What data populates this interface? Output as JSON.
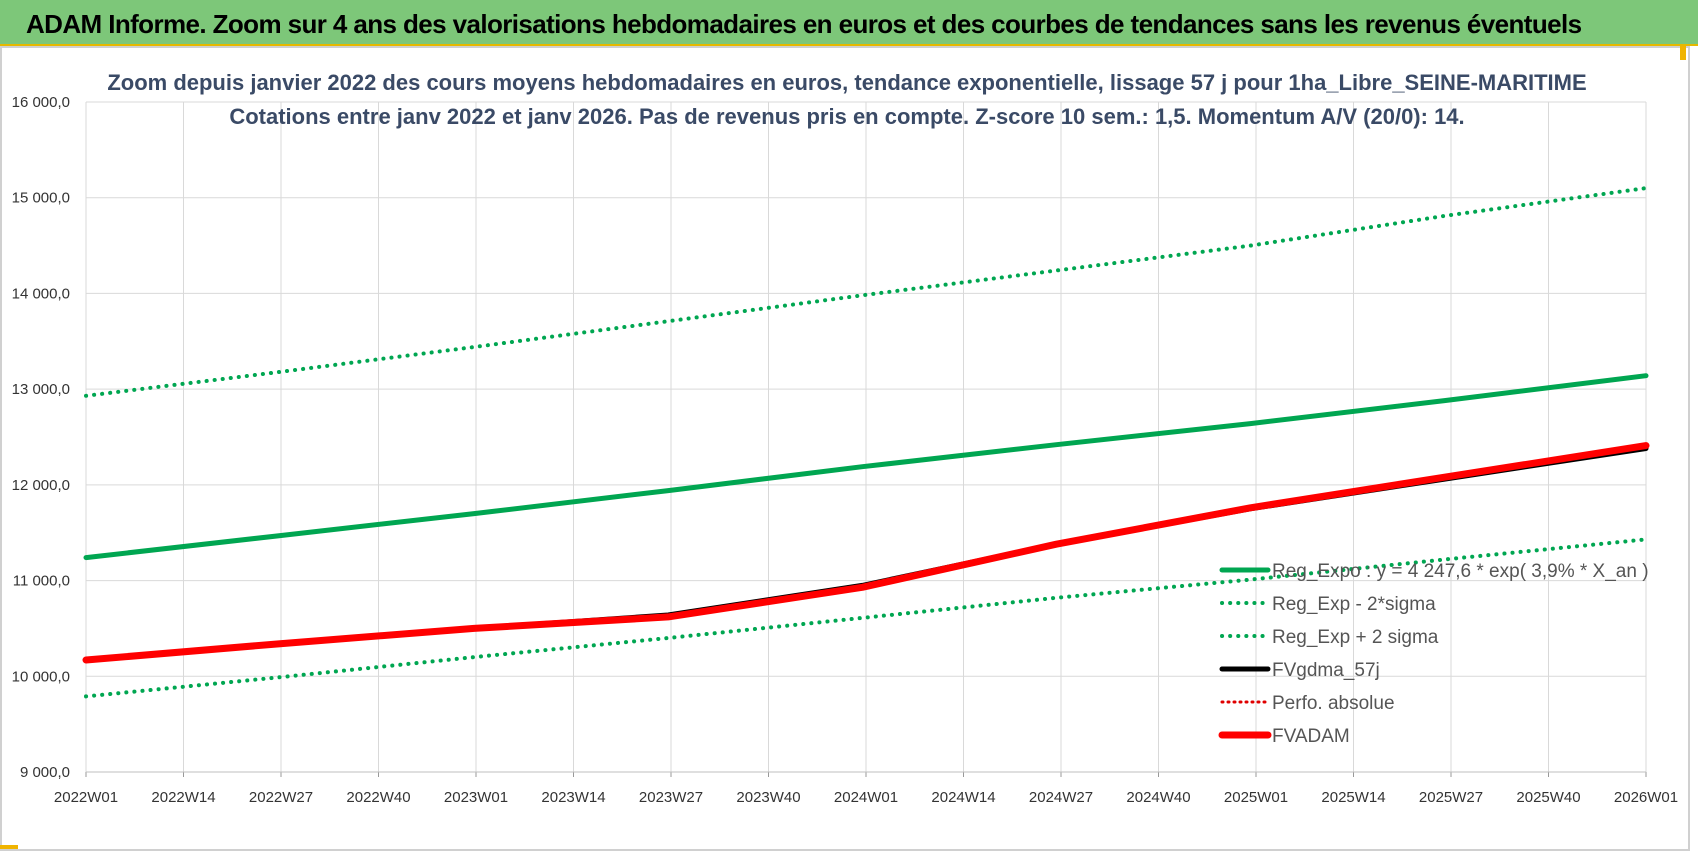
{
  "header": {
    "title": "ADAM Informe. Zoom sur 4 ans des valorisations hebdomadaires en euros et des courbes de tendances sans les revenus éventuels"
  },
  "chart_data": {
    "type": "line",
    "title": "Zoom depuis janvier 2022 des cours moyens hebdomadaires en euros, tendance exponentielle, lissage 57 j pour 1ha_Libre_SEINE-MARITIME",
    "subtitle": "Cotations entre janv 2022 et janv 2026. Pas de revenus pris en compte. Z-score 10 sem.: 1,5. Momentum A/V (20/0): 14.",
    "xlabel": "",
    "ylabel": "",
    "ylim": [
      9000,
      16000
    ],
    "y_ticks": [
      "9 000,0",
      "10 000,0",
      "11 000,0",
      "12 000,0",
      "13 000,0",
      "14 000,0",
      "15 000,0",
      "16 000,0"
    ],
    "x_ticks": [
      "2022W01",
      "2022W14",
      "2022W27",
      "2022W40",
      "2023W01",
      "2023W14",
      "2023W27",
      "2023W40",
      "2024W01",
      "2024W14",
      "2024W27",
      "2024W40",
      "2025W01",
      "2025W14",
      "2025W27",
      "2025W40",
      "2026W01"
    ],
    "grid": true,
    "legend_position": "bottom-right",
    "series": [
      {
        "name": "Reg_Expo : y = 4 247,6 * exp( 3,9% *  X_an )",
        "style": "solid",
        "color": "#00a651",
        "values": [
          11240,
          11470,
          11700,
          11940,
          12190,
          12420,
          12640,
          12880,
          13140
        ]
      },
      {
        "name": "Reg_Exp - 2*sigma",
        "style": "dotted",
        "color": "#00a651",
        "values": [
          9790,
          9990,
          10200,
          10400,
          10610,
          10820,
          11010,
          11220,
          11430
        ]
      },
      {
        "name": "Reg_Exp + 2 sigma",
        "style": "dotted",
        "color": "#00a651",
        "values": [
          12930,
          13180,
          13440,
          13710,
          13980,
          14240,
          14500,
          14810,
          15100
        ]
      },
      {
        "name": "FVgdma_57j",
        "style": "solid",
        "color": "#000000",
        "values": [
          10170,
          10340,
          10500,
          10640,
          10950,
          11380,
          11750,
          12060,
          12380
        ]
      },
      {
        "name": "Perfo. absolue",
        "style": "dotted",
        "color": "#e00000",
        "values": [
          10170,
          10340,
          10500,
          10630,
          10940,
          11380,
          11750,
          12070,
          12400
        ]
      },
      {
        "name": "FVADAM",
        "style": "solid",
        "color": "#ff0000",
        "values": [
          10170,
          10340,
          10500,
          10620,
          10930,
          11380,
          11760,
          12080,
          12410
        ]
      }
    ],
    "series_x": [
      0,
      26,
      52,
      78,
      104,
      130,
      156,
      182,
      209
    ],
    "x_total_weeks": 209
  }
}
